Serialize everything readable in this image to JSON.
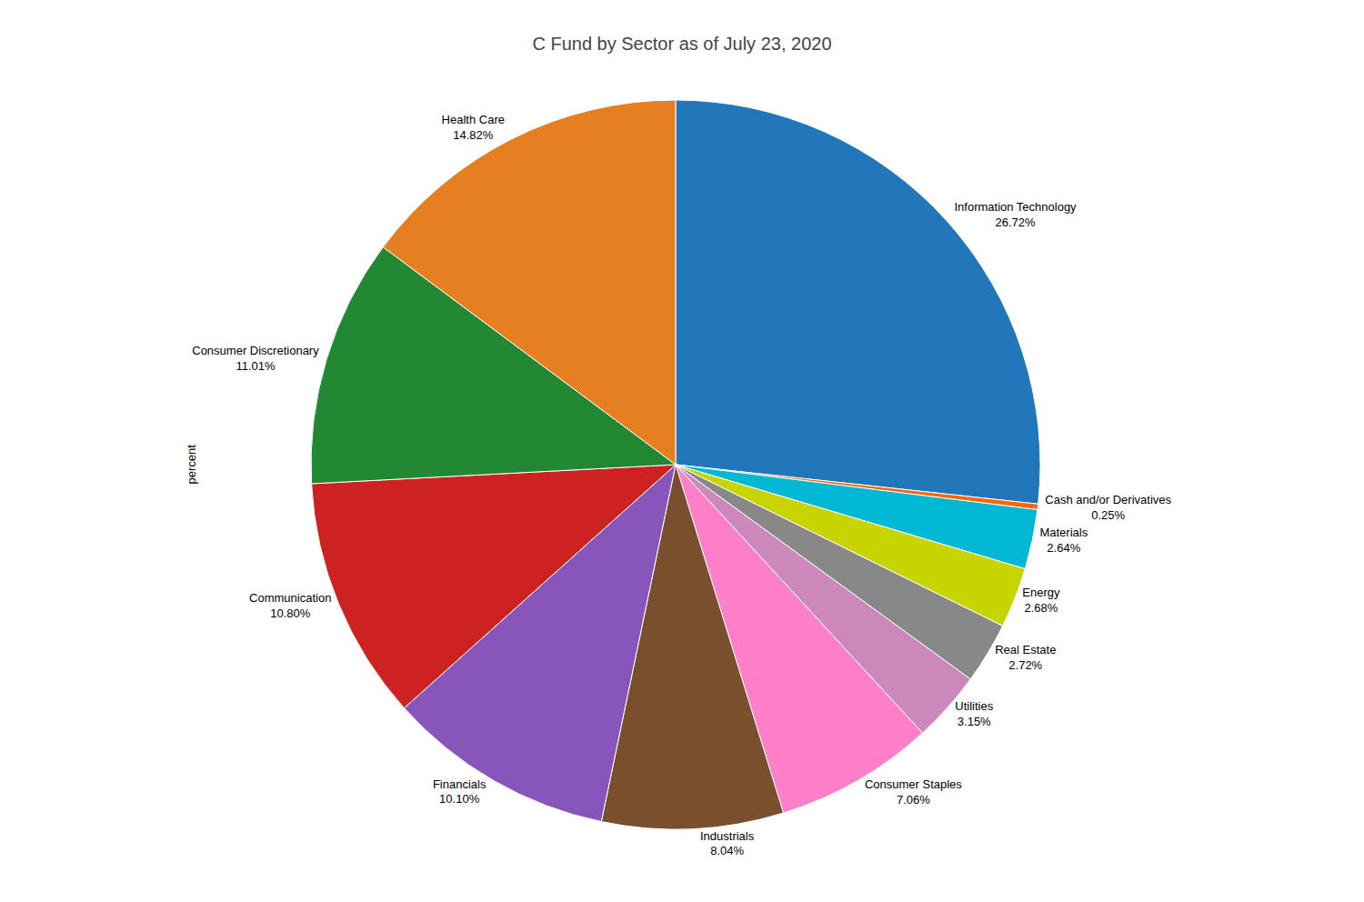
{
  "chart_data": {
    "type": "pie",
    "title": "C Fund by Sector as of July 23, 2020",
    "categories": [
      "Information Technology",
      "Cash and/or Derivatives",
      "Materials",
      "Energy",
      "Real Estate",
      "Utilities",
      "Consumer Staples",
      "Industrials",
      "Financials",
      "Communication",
      "Consumer Discretionary",
      "Health Care"
    ],
    "values": [
      26.72,
      0.25,
      2.64,
      2.68,
      2.72,
      3.15,
      7.06,
      8.04,
      10.1,
      10.8,
      11.01,
      14.82
    ],
    "value_labels": [
      "26.72%",
      "0.25%",
      "2.64%",
      "2.68%",
      "2.72%",
      "3.15%",
      "7.06%",
      "8.04%",
      "10.10%",
      "10.80%",
      "11.01%",
      "14.82%"
    ],
    "colors": [
      "#2277bb",
      "#ff6600",
      "#00b8d4",
      "#c8d400",
      "#888888",
      "#cc88bb",
      "#ff80c8",
      "#7a4f2e",
      "#8855bb",
      "#cc2222",
      "#228833",
      "#e67e22"
    ],
    "data_labels": true,
    "annotations": [
      "percent"
    ]
  }
}
